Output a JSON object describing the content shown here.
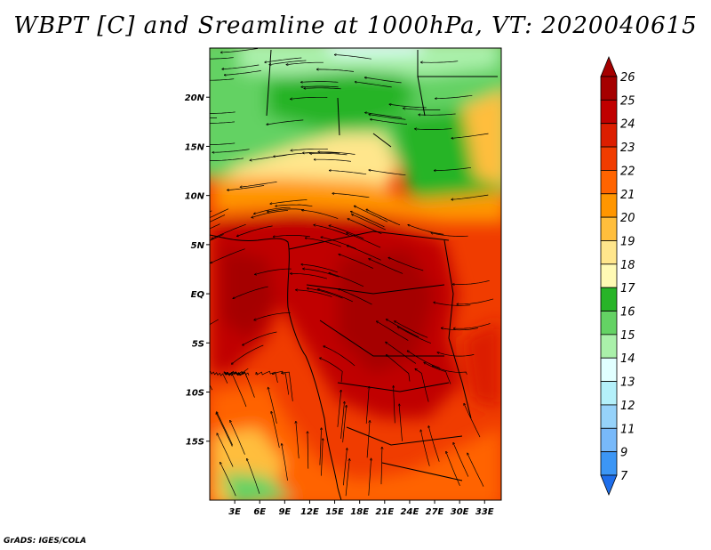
{
  "title": "WBPT [C] and Sreamline at 1000hPa, VT: 2020040615",
  "footer": "GrADS: IGES/COLA",
  "map": {
    "lat_range": [
      -21,
      25
    ],
    "lon_range": [
      0,
      35
    ],
    "lat_ticks": [
      {
        "value": 20,
        "label": "20N"
      },
      {
        "value": 15,
        "label": "15N"
      },
      {
        "value": 10,
        "label": "10N"
      },
      {
        "value": 5,
        "label": "5N"
      },
      {
        "value": 0,
        "label": "EQ"
      },
      {
        "value": -5,
        "label": "5S"
      },
      {
        "value": -10,
        "label": "10S"
      },
      {
        "value": -15,
        "label": "15S"
      }
    ],
    "lon_ticks": [
      {
        "value": 3,
        "label": "3E"
      },
      {
        "value": 6,
        "label": "6E"
      },
      {
        "value": 9,
        "label": "9E"
      },
      {
        "value": 12,
        "label": "12E"
      },
      {
        "value": 15,
        "label": "15E"
      },
      {
        "value": 18,
        "label": "18E"
      },
      {
        "value": 21,
        "label": "21E"
      },
      {
        "value": 24,
        "label": "24E"
      },
      {
        "value": 27,
        "label": "27E"
      },
      {
        "value": 30,
        "label": "30E"
      },
      {
        "value": 33,
        "label": "33E"
      }
    ]
  },
  "colorbar": {
    "levels": [
      {
        "label": "26",
        "color": "#a50000"
      },
      {
        "label": "25",
        "color": "#c00000"
      },
      {
        "label": "24",
        "color": "#dc1e00"
      },
      {
        "label": "23",
        "color": "#f03c00"
      },
      {
        "label": "22",
        "color": "#ff6400"
      },
      {
        "label": "21",
        "color": "#ff9600"
      },
      {
        "label": "20",
        "color": "#ffbe3c"
      },
      {
        "label": "19",
        "color": "#ffe68c"
      },
      {
        "label": "18",
        "color": "#fffab4"
      },
      {
        "label": "17",
        "color": "#28b428"
      },
      {
        "label": "16",
        "color": "#64d264"
      },
      {
        "label": "15",
        "color": "#aaf0aa"
      },
      {
        "label": "14",
        "color": "#e1ffff"
      },
      {
        "label": "13",
        "color": "#b4f0fa"
      },
      {
        "label": "12",
        "color": "#96d2fa"
      },
      {
        "label": "11",
        "color": "#78b9fa"
      },
      {
        "label": "9",
        "color": "#3c96f5"
      },
      {
        "label": "7",
        "color": "#1e6eeb"
      }
    ],
    "top_color": "#a50000",
    "bottom_color": "#1e6eeb"
  }
}
